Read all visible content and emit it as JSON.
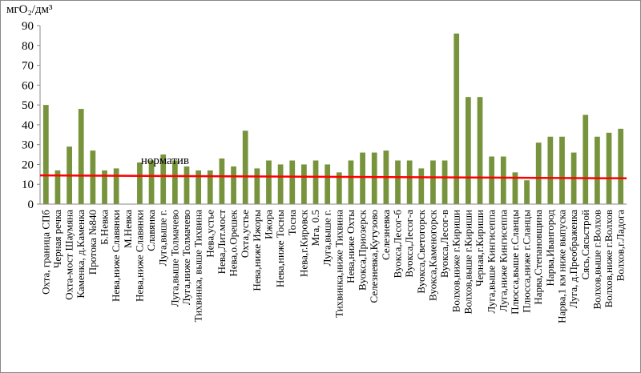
{
  "chart_data": {
    "type": "bar",
    "y_label": "мгO₂/дм³",
    "categories": [
      "Охта, граница СПб",
      "Черная речка",
      "Охта-мост Шаумяна",
      "Каменка, д.Каменка",
      "Протока №840",
      "Б.Невка",
      "Нева,ниже Славянки",
      "М.Невка",
      "Нева,ниже Славянки",
      "Славянка",
      "Луга,выше г.",
      "Луга,выше Толмачево",
      "Луга,ниже Толмачево",
      "Тихвинка, выше Тихвина",
      "Нева,устье",
      "Нева,Лит.мост",
      "Нева,о.Орешек",
      "Охта,устье",
      "Нева,ниже Ижоры",
      "Ижора",
      "Нева,ниже Тосны",
      "Тосна",
      "Нева,г.Кировск",
      "Мга, 0.5",
      "Луга,выше г.",
      "Тихвинка,ниже Тихвина",
      "Нева,ниже Охты",
      "Вуокса,Приозерск",
      "Селезневка,Кутузово",
      "Селезневка",
      "Вуокса,Лесог-б",
      "Вуокса,Лесог-а",
      "Вуокса,Светогорск",
      "Вуокса,Каменогорск",
      "Вуокса,Лесог-в",
      "Волхов,ниже г.Кириши",
      "Волхов,выше г.Кириши",
      "Черная,г.Кириши",
      "Луга,выше Кингисеппа",
      "Луга,ниже Кингисеппа",
      "Плюсса,выше г.Сланцы",
      "Плюсса,ниже г.Сланцы",
      "Нарва,Степановщина",
      "Нарва,Ивангород",
      "Нарва,1 км ниже выпуска",
      "Луга, д.Преображенка",
      "Сясь,Сясьстрой",
      "Волхов,выше г.Волхов",
      "Волхов,ниже г.Волхов",
      "Волхов,г.Ладога"
    ],
    "values": [
      50,
      17,
      29,
      48,
      27,
      17,
      18,
      0,
      21,
      22,
      25,
      22,
      19,
      17,
      17,
      23,
      19,
      37,
      18,
      22,
      20,
      22,
      20,
      22,
      20,
      16,
      22,
      26,
      26,
      27,
      22,
      22,
      18,
      22,
      22,
      86,
      54,
      54,
      24,
      24,
      16,
      12,
      31,
      34,
      34,
      26,
      45,
      34,
      36,
      38
    ],
    "color": "#77933c",
    "norm": {
      "label": "норматив",
      "start": 14.5,
      "end": 13,
      "color": "#ff0000"
    },
    "ylim": [
      0,
      90
    ],
    "yticks": [
      0,
      10,
      20,
      30,
      40,
      50,
      60,
      70,
      80,
      90
    ],
    "grid": false
  }
}
